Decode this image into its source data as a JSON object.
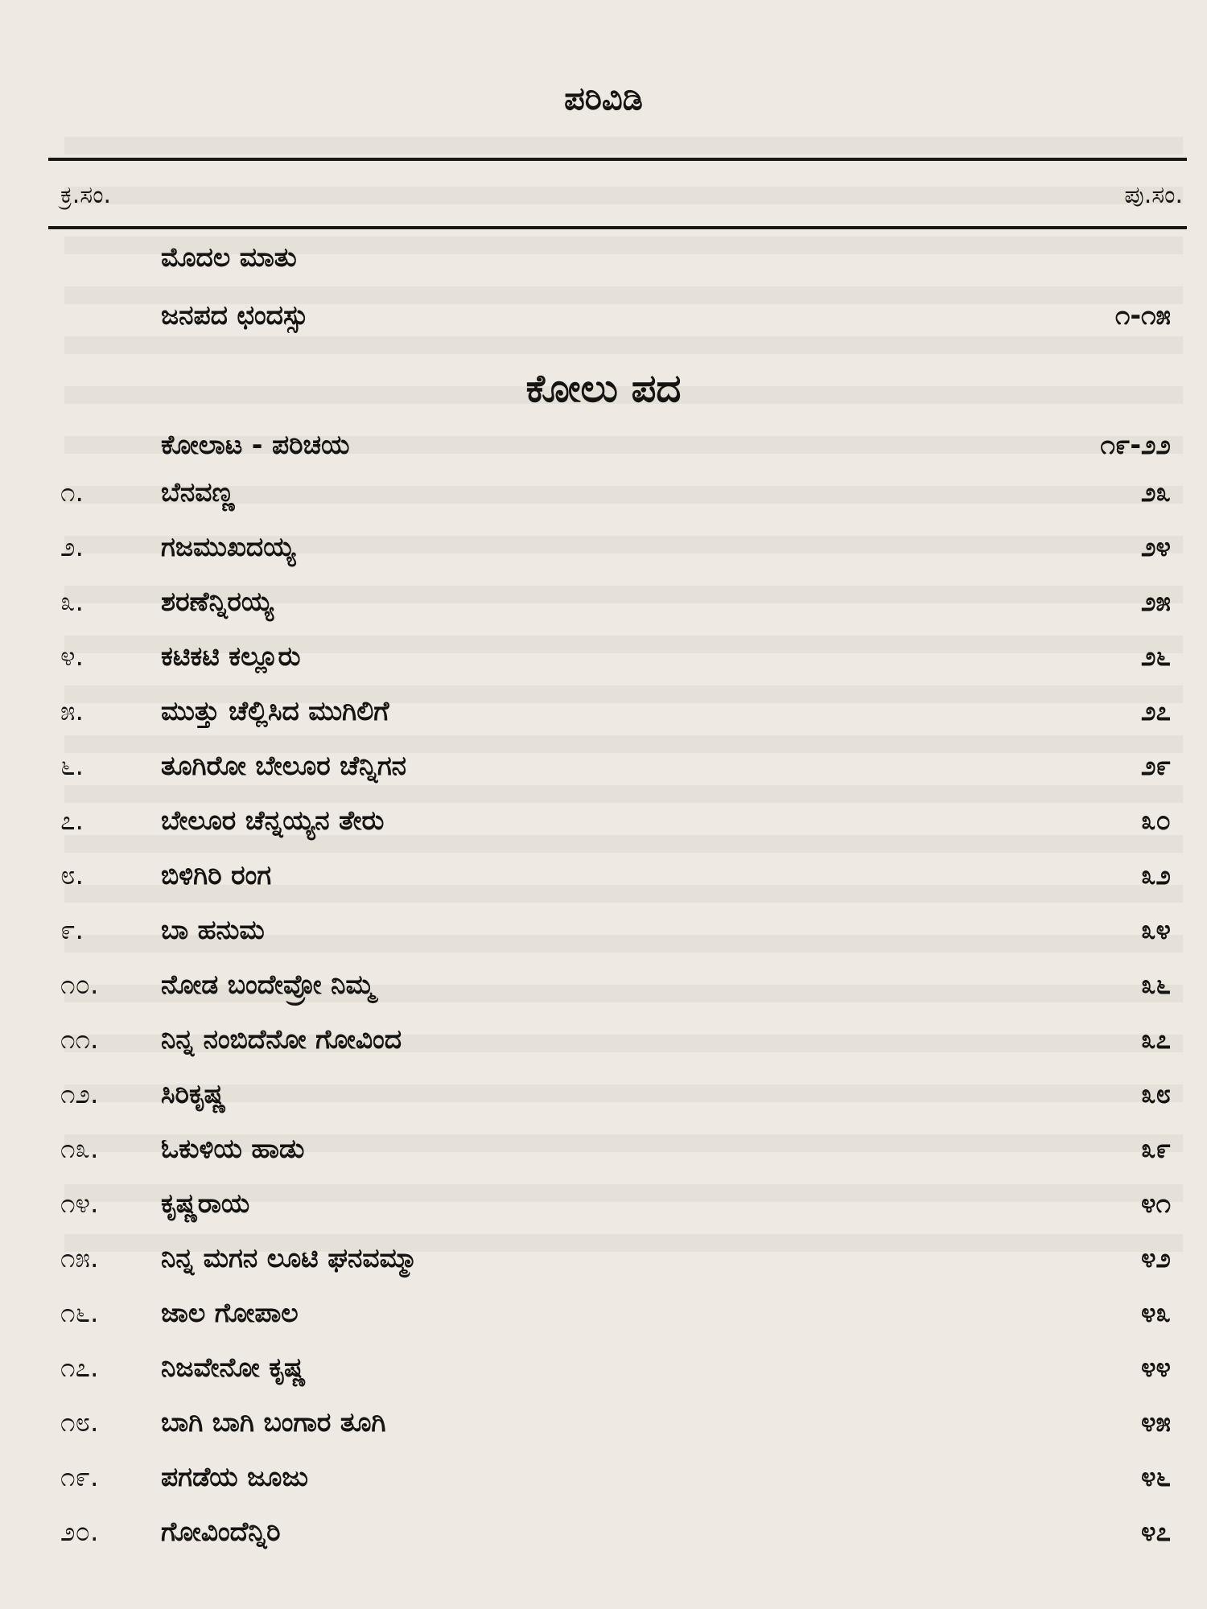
{
  "title": "ಪರಿವಿಡಿ",
  "header": {
    "serial_label": "ಕ್ರ.ಸಂ.",
    "page_label": "ಪು.ಸಂ."
  },
  "front_matter": [
    {
      "text": "ಮೊದಲ ಮಾತು",
      "page": ""
    },
    {
      "text": "ಜನಪದ ಛಂದಸ್ಸು",
      "page": "೧-೧೫"
    }
  ],
  "section": {
    "heading": "ಕೋಲು ಪದ",
    "intro": {
      "text": "ಕೋಲಾಟ - ಪರಿಚಯ",
      "page": "೧೯-೨೨"
    },
    "items": [
      {
        "num": "೧.",
        "text": "ಬೆನವಣ್ಣ",
        "page": "೨೩"
      },
      {
        "num": "೨.",
        "text": "ಗಜಮುಖದಯ್ಯ",
        "page": "೨೪"
      },
      {
        "num": "೩.",
        "text": "ಶರಣೆನ್ನಿರಯ್ಯ",
        "page": "೨೫"
      },
      {
        "num": "೪.",
        "text": "ಕಟಿಕಟಿ ಕಲ್ಲೂರು",
        "page": "೨೬"
      },
      {
        "num": "೫.",
        "text": "ಮುತ್ತು ಚೆಲ್ಲಿಸಿದ ಮುಗಿಲಿಗೆ",
        "page": "೨೭"
      },
      {
        "num": "೬.",
        "text": "ತೂಗಿರೋ ಬೇಲೂರ ಚೆನ್ನಿಗನ",
        "page": "೨೯"
      },
      {
        "num": "೭.",
        "text": "ಬೇಲೂರ ಚೆನ್ನಯ್ಯನ ತೇರು",
        "page": "೩೦"
      },
      {
        "num": "೮.",
        "text": "ಬಿಳಿಗಿರಿ ರಂಗ",
        "page": "೩೨"
      },
      {
        "num": "೯.",
        "text": "ಬಾ ಹನುಮ",
        "page": "೩೪"
      },
      {
        "num": "೧೦.",
        "text": "ನೋಡ ಬಂದೇವ್ರೋ ನಿಮ್ಮ",
        "page": "೩೬"
      },
      {
        "num": "೧೧.",
        "text": "ನಿನ್ನ ನಂಬಿದೆನೋ ಗೋವಿಂದ",
        "page": "೩೭"
      },
      {
        "num": "೧೨.",
        "text": "ಸಿರಿಕೃಷ್ಣ",
        "page": "೩೮"
      },
      {
        "num": "೧೩.",
        "text": "ಓಕುಳಿಯ ಹಾಡು",
        "page": "೩೯"
      },
      {
        "num": "೧೪.",
        "text": "ಕೃಷ್ಣರಾಯ",
        "page": "೪೧"
      },
      {
        "num": "೧೫.",
        "text": "ನಿನ್ನ ಮಗನ ಲೂಟಿ ಘನವಮ್ಮಾ",
        "page": "೪೨"
      },
      {
        "num": "೧೬.",
        "text": "ಜಾಲ ಗೋಪಾಲ",
        "page": "೪೩"
      },
      {
        "num": "೧೭.",
        "text": "ನಿಜವೇನೋ ಕೃಷ್ಣ",
        "page": "೪೪"
      },
      {
        "num": "೧೮.",
        "text": "ಬಾಗಿ ಬಾಗಿ ಬಂಗಾರ ತೂಗಿ",
        "page": "೪೫"
      },
      {
        "num": "೧೯.",
        "text": "ಪಗಡೆಯ ಜೂಜು",
        "page": "೪೬"
      },
      {
        "num": "೨೦.",
        "text": "ಗೋವಿಂದೆನ್ನಿರಿ",
        "page": "೪೭"
      }
    ]
  }
}
